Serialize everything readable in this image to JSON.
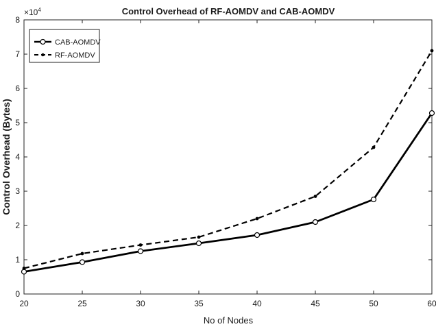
{
  "chart_data": {
    "type": "line",
    "title": "Control Overhead of RF-AOMDV and CAB-AOMDV",
    "xlabel": "No of Nodes",
    "ylabel": "Control Overhead (Bytes)",
    "y_exponent_label": "×10",
    "y_exponent_power": "4",
    "xlim": [
      20,
      60
    ],
    "ylim": [
      0,
      8
    ],
    "x_ticks": [
      20,
      25,
      30,
      35,
      40,
      45,
      50,
      60
    ],
    "y_ticks": [
      0,
      1,
      2,
      3,
      4,
      5,
      6,
      7,
      8
    ],
    "grid": false,
    "legend_position": "top-left",
    "categories": [
      20,
      25,
      30,
      35,
      40,
      45,
      50,
      60
    ],
    "series": [
      {
        "name": "CAB-AOMDV",
        "values": [
          0.65,
          0.93,
          1.25,
          1.48,
          1.72,
          2.1,
          2.76,
          5.28
        ],
        "style": "solid",
        "marker": "circle",
        "color": "#000000"
      },
      {
        "name": "RF-AOMDV",
        "values": [
          0.75,
          1.18,
          1.43,
          1.66,
          2.2,
          2.85,
          4.28,
          7.1
        ],
        "style": "dashed",
        "marker": "dot",
        "color": "#000000"
      }
    ]
  }
}
